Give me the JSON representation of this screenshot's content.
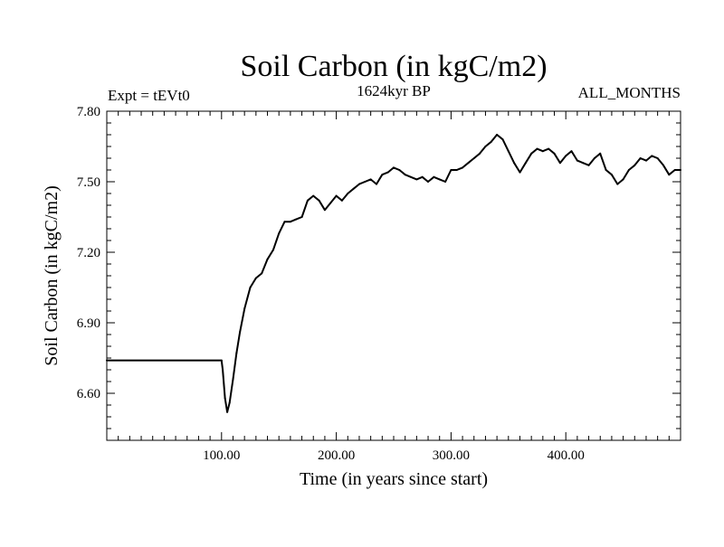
{
  "chart_data": {
    "type": "line",
    "title": "Soil Carbon (in kgC/m2)",
    "subtitle_left": "Expt = tEVt0",
    "subtitle_center": "1624kyr BP",
    "subtitle_right": "ALL_MONTHS",
    "xlabel": "Time (in years since start)",
    "ylabel": "Soil Carbon (in kgC/m2)",
    "xlim": [
      0,
      500
    ],
    "ylim": [
      6.4,
      7.8
    ],
    "x_ticks": [
      100,
      200,
      300,
      400
    ],
    "x_tick_labels": [
      "100.00",
      "200.00",
      "300.00",
      "400.00"
    ],
    "y_ticks": [
      6.6,
      6.9,
      7.2,
      7.5,
      7.8
    ],
    "y_tick_labels": [
      "6.60",
      "6.90",
      "7.20",
      "7.50",
      "7.80"
    ],
    "series": [
      {
        "name": "Soil Carbon",
        "color": "#000000",
        "x": [
          0,
          100,
          101,
          103,
          105,
          107,
          110,
          113,
          116,
          120,
          125,
          130,
          135,
          140,
          145,
          150,
          155,
          160,
          165,
          170,
          175,
          180,
          185,
          190,
          195,
          200,
          205,
          210,
          215,
          220,
          225,
          230,
          235,
          240,
          245,
          250,
          255,
          260,
          265,
          270,
          275,
          280,
          285,
          290,
          295,
          300,
          305,
          310,
          315,
          320,
          325,
          330,
          335,
          340,
          345,
          350,
          355,
          360,
          365,
          370,
          375,
          380,
          385,
          390,
          395,
          400,
          405,
          410,
          415,
          420,
          425,
          430,
          435,
          440,
          445,
          450,
          455,
          460,
          465,
          470,
          475,
          480,
          485,
          490,
          495,
          500
        ],
        "values": [
          6.74,
          6.74,
          6.7,
          6.58,
          6.52,
          6.56,
          6.66,
          6.77,
          6.86,
          6.96,
          7.05,
          7.09,
          7.11,
          7.17,
          7.21,
          7.28,
          7.33,
          7.33,
          7.34,
          7.35,
          7.42,
          7.44,
          7.42,
          7.38,
          7.41,
          7.44,
          7.42,
          7.45,
          7.47,
          7.49,
          7.5,
          7.51,
          7.49,
          7.53,
          7.54,
          7.56,
          7.55,
          7.53,
          7.52,
          7.51,
          7.52,
          7.5,
          7.52,
          7.51,
          7.5,
          7.55,
          7.55,
          7.56,
          7.58,
          7.6,
          7.62,
          7.65,
          7.67,
          7.7,
          7.68,
          7.63,
          7.58,
          7.54,
          7.58,
          7.62,
          7.64,
          7.63,
          7.64,
          7.62,
          7.58,
          7.61,
          7.63,
          7.59,
          7.58,
          7.57,
          7.6,
          7.62,
          7.55,
          7.53,
          7.49,
          7.51,
          7.55,
          7.57,
          7.6,
          7.59,
          7.61,
          7.6,
          7.57,
          7.53,
          7.55,
          7.55
        ]
      }
    ]
  }
}
